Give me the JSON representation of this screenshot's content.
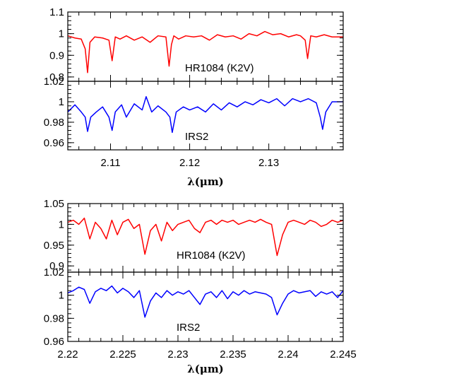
{
  "chart_data": [
    {
      "type": "line",
      "xlabel": "λ(μm)",
      "xlim": [
        2.1046,
        2.1394
      ],
      "x_ticks": [
        2.11,
        2.12,
        2.13
      ],
      "x_tick_labels": [
        "2.11",
        "2.12",
        "2.13"
      ],
      "panels": [
        {
          "label": "HR1084 (K2V)",
          "ylim": [
            0.78,
            1.1
          ],
          "y_ticks": [
            0.8,
            0.9,
            1.0,
            1.1
          ],
          "y_tick_labels": [
            "0.8",
            "0.9",
            "1",
            "1.1"
          ],
          "color": "#ff0000",
          "x": [
            2.1046,
            2.1055,
            2.1063,
            2.1068,
            2.1071,
            2.1074,
            2.108,
            2.109,
            2.1098,
            2.1102,
            2.1106,
            2.1112,
            2.112,
            2.113,
            2.114,
            2.115,
            2.116,
            2.117,
            2.1174,
            2.1177,
            2.118,
            2.1186,
            2.1195,
            2.1205,
            2.1215,
            2.1225,
            2.1235,
            2.1245,
            2.1255,
            2.1265,
            2.1275,
            2.1285,
            2.1295,
            2.1305,
            2.1315,
            2.1325,
            2.1335,
            2.134,
            2.1346,
            2.1349,
            2.1353,
            2.136,
            2.137,
            2.138,
            2.1394
          ],
          "y": [
            0.99,
            0.98,
            0.975,
            0.93,
            0.82,
            0.96,
            0.985,
            0.98,
            0.97,
            0.875,
            0.985,
            0.975,
            0.99,
            0.97,
            0.985,
            0.96,
            0.99,
            0.985,
            0.85,
            0.95,
            0.99,
            0.975,
            0.99,
            0.985,
            0.99,
            0.97,
            0.995,
            0.985,
            0.99,
            0.975,
            1.0,
            0.99,
            1.01,
            0.995,
            1.0,
            0.985,
            0.995,
            0.99,
            0.97,
            0.885,
            0.99,
            0.985,
            0.995,
            0.985,
            0.985
          ]
        },
        {
          "label": "IRS2",
          "ylim": [
            0.953,
            1.02
          ],
          "y_ticks": [
            0.96,
            0.98,
            1.0,
            1.02
          ],
          "y_tick_labels": [
            "0.96",
            "0.98",
            "1",
            "1.02"
          ],
          "color": "#0000ff",
          "x": [
            2.1046,
            2.1055,
            2.1063,
            2.1068,
            2.1071,
            2.1075,
            2.1082,
            2.109,
            2.1098,
            2.1102,
            2.1106,
            2.1114,
            2.112,
            2.113,
            2.114,
            2.1145,
            2.1152,
            2.116,
            2.117,
            2.1175,
            2.1178,
            2.1183,
            2.1192,
            2.12,
            2.121,
            2.122,
            2.123,
            2.124,
            2.125,
            2.126,
            2.127,
            2.128,
            2.129,
            2.13,
            2.131,
            2.132,
            2.133,
            2.134,
            2.135,
            2.136,
            2.1365,
            2.1368,
            2.1372,
            2.138,
            2.1394
          ],
          "y": [
            0.99,
            0.997,
            0.99,
            0.985,
            0.971,
            0.985,
            0.99,
            0.995,
            0.985,
            0.972,
            0.99,
            0.997,
            0.985,
            0.998,
            0.992,
            1.005,
            0.99,
            0.996,
            0.99,
            0.985,
            0.97,
            0.99,
            0.995,
            0.992,
            0.995,
            0.99,
            0.998,
            0.992,
            0.999,
            0.995,
            1.0,
            0.997,
            1.002,
            0.999,
            1.003,
            0.996,
            1.003,
            1.0,
            1.003,
            0.999,
            0.985,
            0.973,
            0.99,
            1.0,
            1.0
          ]
        }
      ]
    },
    {
      "type": "line",
      "xlabel": "λ(μm)",
      "xlim": [
        2.22,
        2.245
      ],
      "x_ticks": [
        2.22,
        2.225,
        2.23,
        2.235,
        2.24,
        2.245
      ],
      "x_tick_labels": [
        "2.22",
        "2.225",
        "2.23",
        "2.235",
        "2.24",
        "2.245"
      ],
      "panels": [
        {
          "label": "HR1084 (K2V)",
          "ylim": [
            0.885,
            1.05
          ],
          "y_ticks": [
            0.9,
            0.95,
            1.0,
            1.05
          ],
          "y_tick_labels": [
            "0.9",
            "0.95",
            "1",
            "1.05"
          ],
          "color": "#ff0000",
          "x": [
            2.22,
            2.2205,
            2.221,
            2.2215,
            2.222,
            2.2225,
            2.223,
            2.2235,
            2.224,
            2.2245,
            2.225,
            2.2255,
            2.226,
            2.2265,
            2.227,
            2.2275,
            2.228,
            2.2285,
            2.229,
            2.2295,
            2.23,
            2.2305,
            2.231,
            2.2315,
            2.232,
            2.2325,
            2.233,
            2.2335,
            2.234,
            2.2345,
            2.235,
            2.2355,
            2.236,
            2.2365,
            2.237,
            2.2375,
            2.238,
            2.2385,
            2.239,
            2.2395,
            2.24,
            2.2405,
            2.241,
            2.2415,
            2.242,
            2.2425,
            2.243,
            2.2435,
            2.244,
            2.2445,
            2.245
          ],
          "y": [
            1.005,
            1.01,
            1.0,
            1.015,
            0.965,
            1.005,
            0.99,
            0.965,
            1.01,
            0.975,
            1.005,
            1.012,
            0.99,
            1.0,
            0.928,
            0.985,
            1.0,
            0.96,
            1.005,
            0.985,
            1.0,
            1.005,
            1.01,
            0.99,
            0.98,
            1.005,
            1.01,
            1.0,
            1.01,
            1.005,
            1.01,
            1.0,
            1.005,
            1.01,
            1.005,
            1.012,
            1.005,
            1.0,
            0.925,
            0.975,
            1.005,
            1.01,
            1.005,
            1.0,
            1.01,
            1.005,
            0.995,
            1.0,
            1.01,
            1.005,
            1.01
          ]
        },
        {
          "label": "IRS2",
          "ylim": [
            0.96,
            1.02
          ],
          "y_ticks": [
            0.96,
            0.98,
            1.0,
            1.02
          ],
          "y_tick_labels": [
            "0.96",
            "0.98",
            "1",
            "1.02"
          ],
          "color": "#0000ff",
          "x": [
            2.22,
            2.2205,
            2.221,
            2.2215,
            2.222,
            2.2225,
            2.223,
            2.2235,
            2.224,
            2.2245,
            2.225,
            2.2255,
            2.226,
            2.2265,
            2.227,
            2.2275,
            2.228,
            2.2285,
            2.229,
            2.2295,
            2.23,
            2.2305,
            2.231,
            2.2315,
            2.232,
            2.2325,
            2.233,
            2.2335,
            2.234,
            2.2345,
            2.235,
            2.2355,
            2.236,
            2.2365,
            2.237,
            2.2375,
            2.238,
            2.2385,
            2.239,
            2.2395,
            2.24,
            2.2405,
            2.241,
            2.2415,
            2.242,
            2.2425,
            2.243,
            2.2435,
            2.244,
            2.2445,
            2.245
          ],
          "y": [
            1.002,
            1.004,
            1.007,
            1.005,
            0.993,
            1.003,
            1.006,
            1.004,
            1.008,
            1.002,
            1.006,
            1.003,
            0.998,
            1.004,
            0.981,
            0.995,
            1.002,
            0.998,
            1.004,
            1.0,
            1.003,
            1.001,
            1.004,
            0.998,
            0.992,
            1.001,
            1.003,
            0.998,
            1.004,
            0.997,
            1.003,
            1.0,
            1.004,
            1.001,
            1.003,
            1.002,
            1.001,
            0.998,
            0.983,
            0.993,
            1.001,
            1.004,
            1.002,
            1.003,
            1.004,
            0.999,
            1.003,
            1.001,
            1.003,
            0.998,
            1.004
          ]
        }
      ]
    }
  ]
}
